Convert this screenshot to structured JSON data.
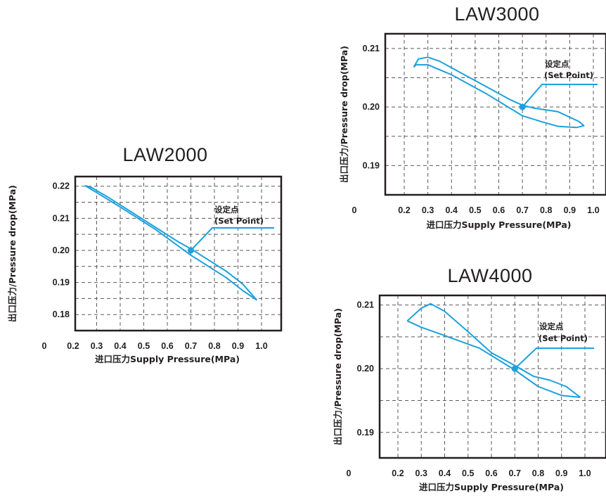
{
  "colors": {
    "curve": "#1ba1dc",
    "frame": "#231f20",
    "grid": "#5a5a5a"
  },
  "chart_data": [
    {
      "type": "line",
      "title": "LAW2000",
      "xlabel": "进口压力Supply Pressure(MPa)",
      "ylabel": "出口压力/Pressure drop(MPa)",
      "x_origin_label": "0",
      "xticks": [
        "0.2",
        "0.3",
        "0.4",
        "0.5",
        "0.6",
        "0.7",
        "0.8",
        "0.9",
        "1.0"
      ],
      "yticks": [
        "0.22",
        "0.21",
        "0.20",
        "0.19",
        "0.18"
      ],
      "xlim": [
        0.2,
        1.0
      ],
      "ylim": [
        0.175,
        0.223
      ],
      "grid": true,
      "annotation": {
        "line1": "设定点",
        "line2": "(Set Point)",
        "x": 0.7,
        "y": 0.2
      },
      "series": [
        {
          "x": [
            0.25,
            0.28,
            0.35,
            0.5,
            0.65,
            0.7,
            0.85,
            0.92,
            0.98
          ],
          "y": [
            0.2202,
            0.2195,
            0.2165,
            0.2095,
            0.2025,
            0.2005,
            0.1935,
            0.1895,
            0.1845
          ]
        },
        {
          "x": [
            0.98,
            0.92,
            0.85,
            0.7,
            0.55,
            0.4,
            0.3,
            0.25
          ],
          "y": [
            0.1845,
            0.1875,
            0.1915,
            0.1985,
            0.2065,
            0.2135,
            0.218,
            0.2202
          ]
        }
      ]
    },
    {
      "type": "line",
      "title": "LAW3000",
      "xlabel": "进口压力Supply Pressure(MPa)",
      "ylabel": "出口压力/Pressure drop(MPa)",
      "x_origin_label": "0",
      "xticks": [
        "0.2",
        "0.3",
        "0.4",
        "0.5",
        "0.6",
        "0.7",
        "0.8",
        "0.9",
        "1.0"
      ],
      "yticks": [
        "0.21",
        "0.20",
        "0.19"
      ],
      "xlim": [
        0.2,
        1.0
      ],
      "ylim": [
        0.185,
        0.2125
      ],
      "grid": true,
      "annotation": {
        "line1": "设定点",
        "line2": "(Set Point)",
        "x": 0.7,
        "y": 0.2
      },
      "series": [
        {
          "x": [
            0.24,
            0.26,
            0.3,
            0.35,
            0.5,
            0.65,
            0.7,
            0.75,
            0.85,
            0.94,
            0.96,
            0.93
          ],
          "y": [
            0.2068,
            0.2082,
            0.2085,
            0.2078,
            0.2045,
            0.2012,
            0.2003,
            0.1998,
            0.1992,
            0.1975,
            0.1968,
            0.1965
          ]
        },
        {
          "x": [
            0.93,
            0.85,
            0.78,
            0.7,
            0.55,
            0.4,
            0.3,
            0.25,
            0.24
          ],
          "y": [
            0.1965,
            0.1967,
            0.1975,
            0.1985,
            0.2022,
            0.2055,
            0.2072,
            0.2072,
            0.2068
          ]
        }
      ]
    },
    {
      "type": "line",
      "title": "LAW4000",
      "xlabel": "进口压力Supply Pressure(MPa)",
      "ylabel": "出口压力/Pressure drop(MPa)",
      "x_origin_label": "0",
      "xticks": [
        "0.2",
        "0.3",
        "0.4",
        "0.5",
        "0.6",
        "0.7",
        "0.8",
        "0.9",
        "1.0"
      ],
      "yticks": [
        "0.21",
        "0.20",
        "0.19"
      ],
      "xlim": [
        0.2,
        1.0
      ],
      "ylim": [
        0.186,
        0.2115
      ],
      "grid": true,
      "annotation": {
        "line1": "设定点",
        "line2": "(Set Point)",
        "x": 0.7,
        "y": 0.2
      },
      "series": [
        {
          "x": [
            0.24,
            0.3,
            0.34,
            0.4,
            0.5,
            0.6,
            0.7,
            0.78,
            0.85,
            0.92,
            0.98
          ],
          "y": [
            0.2075,
            0.2095,
            0.2102,
            0.209,
            0.2058,
            0.2025,
            0.2005,
            0.1988,
            0.1982,
            0.1972,
            0.1955
          ]
        },
        {
          "x": [
            0.98,
            0.9,
            0.8,
            0.7,
            0.55,
            0.4,
            0.3,
            0.24
          ],
          "y": [
            0.1955,
            0.1958,
            0.1972,
            0.1998,
            0.2032,
            0.2052,
            0.2065,
            0.2075
          ]
        }
      ]
    }
  ]
}
